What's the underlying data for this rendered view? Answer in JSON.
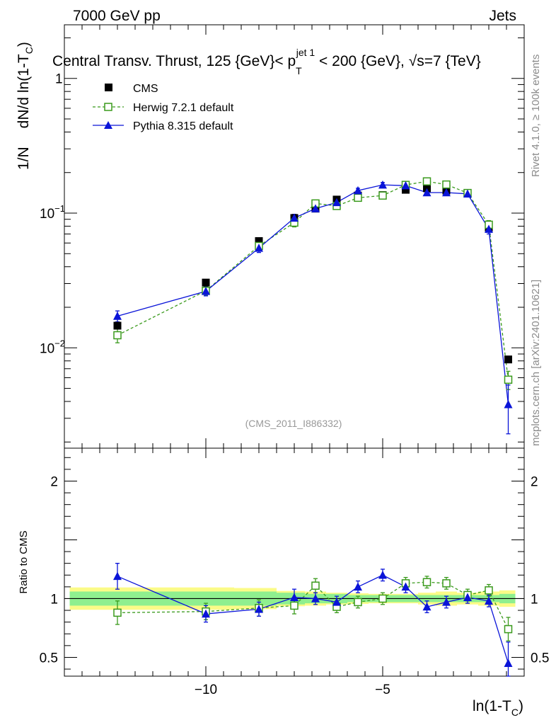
{
  "header": {
    "left": "7000 GeV pp",
    "right": "Jets",
    "title_main": "Central Transv. Thrust, 125 {GeV}< p",
    "title_sup": "jet 1",
    "title_sub": "T",
    "title_rest": " < 200 {GeV}, ",
    "title_sqrt": "√s",
    "title_end": "=7 {TeV}",
    "analysis_id": "(CMS_2011_I886332)",
    "side_rivet": "Rivet 4.1.0, ≥ 100k events",
    "side_mcplots": "mcplots.cern.ch [arXiv:2401.10621]"
  },
  "chart_data": [
    {
      "type": "scatter",
      "panel": "main",
      "title": "Central Transv. Thrust, 125 {GeV}< p_T^{jet 1} < 200 {GeV}, √s=7 {TeV}",
      "ylabel": "1/N dN/d ln(1-T_C)",
      "yscale": "log",
      "xlim": [
        -14,
        -1.0
      ],
      "ylim": [
        0.0018,
        2.5
      ],
      "y_ticks": [
        "10^-2",
        "10^-1",
        "1"
      ],
      "x": [
        -12.5,
        -10.0,
        -8.5,
        -7.5,
        -6.9,
        -6.3,
        -5.7,
        -5.0,
        -4.35,
        -3.75,
        -3.2,
        -2.6,
        -2.0,
        -1.45
      ],
      "series": [
        {
          "name": "CMS",
          "color": "#000000",
          "style": "data",
          "values": [
            0.0146,
            0.0305,
            0.062,
            0.092,
            0.108,
            0.126,
            0.135,
            0.136,
            0.149,
            0.153,
            0.147,
            0.14,
            0.078,
            0.0082
          ],
          "errors": [
            0.001,
            0.001,
            0.002,
            0.003,
            0.003,
            0.003,
            0.003,
            0.003,
            0.003,
            0.003,
            0.003,
            0.003,
            0.003,
            0.0003
          ]
        },
        {
          "name": "Herwig 7.2.1 default",
          "color": "#3a9a1c",
          "style": "dashed-open-square",
          "values": [
            0.0124,
            0.0265,
            0.057,
            0.085,
            0.118,
            0.113,
            0.13,
            0.135,
            0.162,
            0.172,
            0.163,
            0.141,
            0.082,
            0.0058
          ],
          "errors": [
            0.0015,
            0.002,
            0.004,
            0.006,
            0.006,
            0.006,
            0.006,
            0.006,
            0.006,
            0.007,
            0.006,
            0.006,
            0.006,
            0.0009
          ]
        },
        {
          "name": "Pythia 8.315 default",
          "color": "#0a14d8",
          "style": "solid-filled-triangle",
          "values": [
            0.0172,
            0.0263,
            0.055,
            0.092,
            0.108,
            0.12,
            0.147,
            0.162,
            0.16,
            0.142,
            0.142,
            0.139,
            0.076,
            0.0038
          ],
          "errors": [
            0.0016,
            0.002,
            0.004,
            0.006,
            0.006,
            0.006,
            0.006,
            0.007,
            0.007,
            0.006,
            0.006,
            0.006,
            0.006,
            0.0015
          ]
        }
      ]
    },
    {
      "type": "scatter",
      "panel": "ratio",
      "ylabel": "Ratio to CMS",
      "xlabel": "ln(1-T_C)",
      "xlim": [
        -14,
        -1.0
      ],
      "ylim": [
        0.34,
        2.28
      ],
      "y_ticks": [
        "0.5",
        "1",
        "2"
      ],
      "x_ticks": [
        "−10",
        "−5"
      ],
      "x": [
        -12.5,
        -10.0,
        -8.5,
        -7.5,
        -6.9,
        -6.3,
        -5.7,
        -5.0,
        -4.35,
        -3.75,
        -3.2,
        -2.6,
        -2.0,
        -1.45
      ],
      "bands": {
        "edges": [
          -13.85,
          -9.2,
          -8.0,
          -7.2,
          -6.6,
          -6.0,
          -5.4,
          -4.7,
          -4.0,
          -3.5,
          -2.9,
          -2.3,
          -1.7,
          -1.25
        ],
        "stat": [
          0.06,
          0.06,
          0.05,
          0.04,
          0.04,
          0.03,
          0.03,
          0.03,
          0.03,
          0.03,
          0.03,
          0.03,
          0.04
        ],
        "total": [
          0.095,
          0.09,
          0.065,
          0.06,
          0.05,
          0.045,
          0.04,
          0.04,
          0.05,
          0.06,
          0.05,
          0.06,
          0.07
        ],
        "stat_color": "#8fef8f",
        "total_color": "#fbfb87"
      },
      "series": [
        {
          "name": "Herwig 7.2.1 default",
          "color": "#3a9a1c",
          "values": [
            0.88,
            0.89,
            0.92,
            0.94,
            1.11,
            0.93,
            0.97,
            1.0,
            1.13,
            1.14,
            1.13,
            1.03,
            1.07,
            0.74
          ],
          "errors": [
            0.1,
            0.07,
            0.07,
            0.07,
            0.06,
            0.05,
            0.05,
            0.05,
            0.05,
            0.05,
            0.05,
            0.05,
            0.05,
            0.1
          ]
        },
        {
          "name": "Pythia 8.315 default",
          "color": "#0a14d8",
          "values": [
            1.19,
            0.87,
            0.91,
            1.01,
            1.0,
            0.97,
            1.1,
            1.2,
            1.1,
            0.93,
            0.97,
            1.01,
            0.98,
            0.45
          ],
          "errors": [
            0.11,
            0.07,
            0.06,
            0.07,
            0.05,
            0.05,
            0.05,
            0.05,
            0.05,
            0.05,
            0.05,
            0.05,
            0.05,
            0.18
          ]
        }
      ]
    }
  ]
}
